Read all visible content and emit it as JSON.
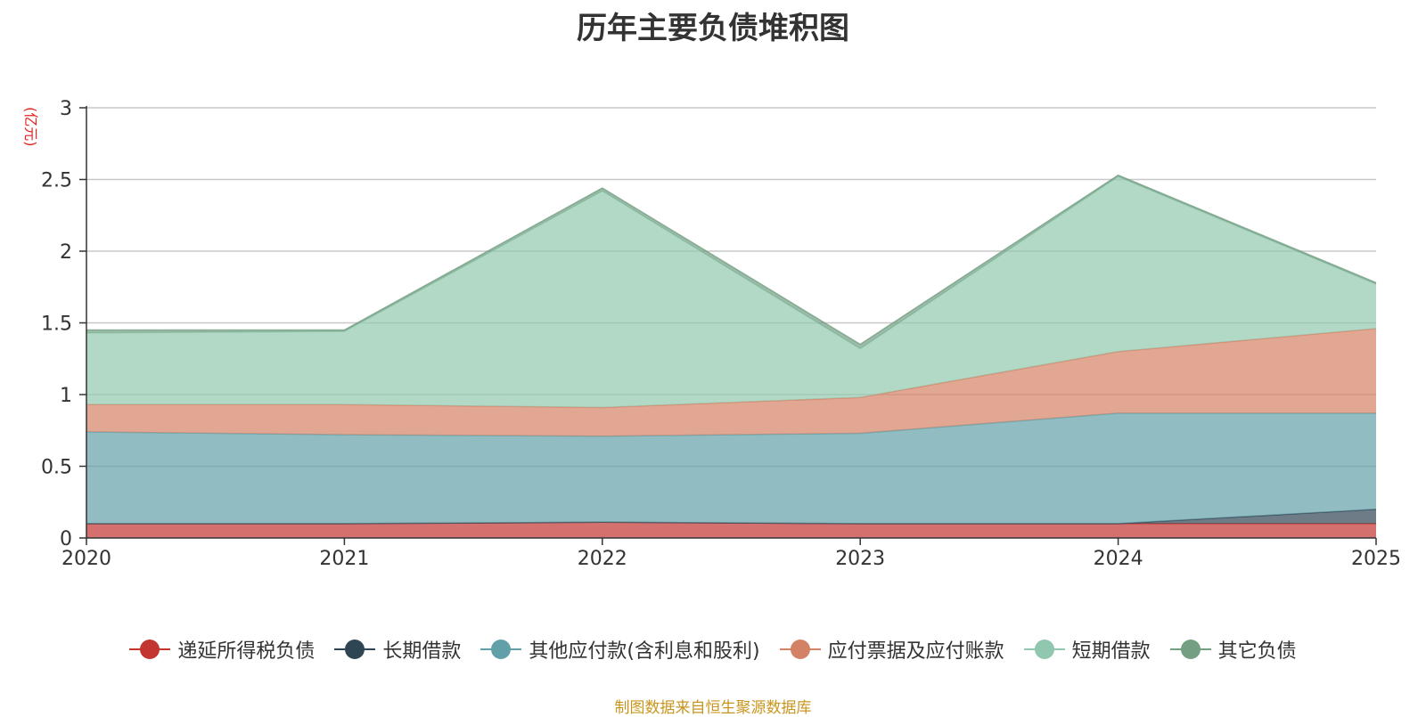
{
  "chart_data": {
    "type": "area",
    "title": "历年主要负债堆积图",
    "ylabel": "(亿元)",
    "xlabel": "",
    "categories": [
      "2020",
      "2021",
      "2022",
      "2023",
      "2024",
      "2025"
    ],
    "ylim": [
      0,
      3
    ],
    "yticks": [
      "0",
      "0.5",
      "1",
      "1.5",
      "2",
      "2.5",
      "3"
    ],
    "stacked": true,
    "grid": true,
    "legend_position": "bottom",
    "series": [
      {
        "name": "递延所得税负债",
        "color": "#c23531",
        "values": [
          0.1,
          0.1,
          0.11,
          0.1,
          0.1,
          0.1
        ]
      },
      {
        "name": "长期借款",
        "color": "#2f4554",
        "values": [
          0,
          0,
          0,
          0,
          0,
          0.1
        ]
      },
      {
        "name": "其他应付款(含利息和股利)",
        "color": "#61a0a8",
        "values": [
          0.64,
          0.62,
          0.6,
          0.63,
          0.77,
          0.67
        ]
      },
      {
        "name": "应付票据及应付账款",
        "color": "#d48265",
        "values": [
          0.19,
          0.21,
          0.2,
          0.25,
          0.43,
          0.59
        ]
      },
      {
        "name": "短期借款",
        "color": "#91c7ae",
        "values": [
          0.5,
          0.51,
          1.51,
          0.34,
          1.22,
          0.31
        ]
      },
      {
        "name": "其它负债",
        "color": "#749f83",
        "values": [
          0.02,
          0.01,
          0.02,
          0.03,
          0.01,
          0.01
        ]
      }
    ]
  },
  "footer": {
    "source": "制图数据来自恒生聚源数据库"
  }
}
